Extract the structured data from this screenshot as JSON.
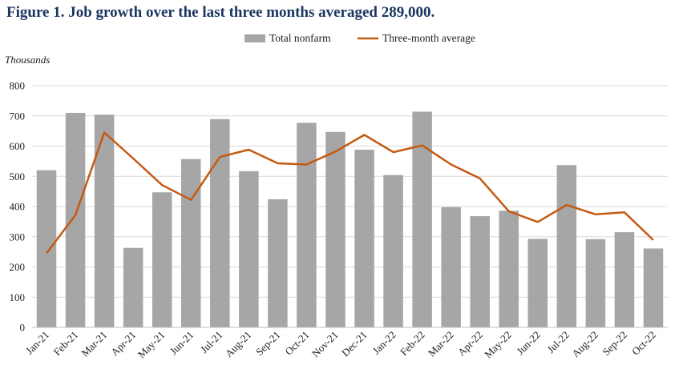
{
  "chart_data": {
    "type": "bar",
    "title": "Figure 1. Job growth over the last three months averaged 289,000.",
    "ylabel": "Thousands",
    "xlabel": "",
    "ylim": [
      0,
      800
    ],
    "yticks": [
      0,
      100,
      200,
      300,
      400,
      500,
      600,
      700,
      800
    ],
    "grid": true,
    "legend": "top-center",
    "categories": [
      "Jan-21",
      "Feb-21",
      "Mar-21",
      "Apr-21",
      "May-21",
      "Jun-21",
      "Jul-21",
      "Aug-21",
      "Sep-21",
      "Oct-21",
      "Nov-21",
      "Dec-21",
      "Jan-22",
      "Feb-22",
      "Mar-22",
      "Apr-22",
      "May-22",
      "Jun-22",
      "Jul-22",
      "Aug-22",
      "Sep-22",
      "Oct-22"
    ],
    "series": [
      {
        "name": "Total nonfarm",
        "type": "bar",
        "color": "#a6a6a6",
        "values": [
          520,
          710,
          704,
          263,
          447,
          557,
          689,
          517,
          424,
          677,
          647,
          588,
          504,
          714,
          398,
          368,
          386,
          293,
          537,
          292,
          315,
          261
        ]
      },
      {
        "name": "Three-month average",
        "type": "line",
        "color": "#c55a11",
        "values": [
          245,
          372,
          645,
          559,
          471,
          422,
          564,
          588,
          543,
          539,
          582,
          637,
          580,
          602,
          539,
          493,
          384,
          349,
          405,
          374,
          381,
          289
        ]
      }
    ]
  }
}
